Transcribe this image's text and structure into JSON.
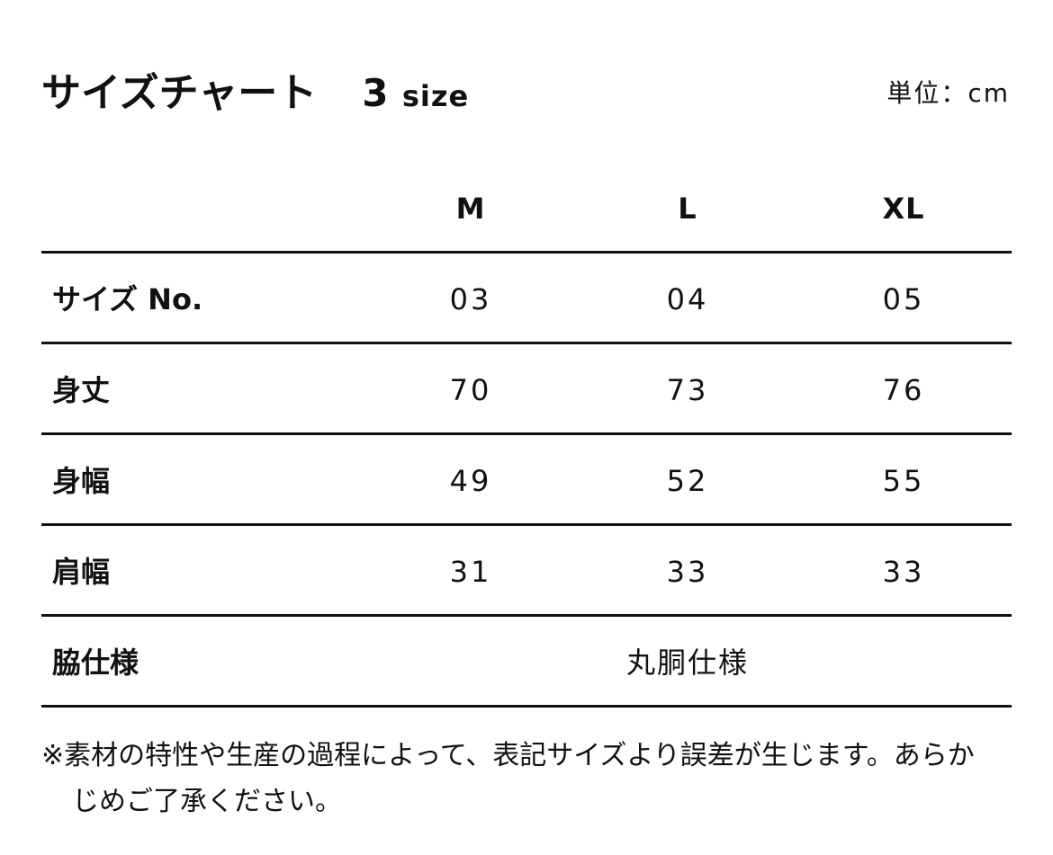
{
  "title": "サイズチャート",
  "size_count": "3",
  "size_word": "size",
  "unit": "単位：cm",
  "columns": [
    "M",
    "L",
    "XL"
  ],
  "rows": [
    {
      "label": "サイズ No.",
      "values": [
        "03",
        "04",
        "05"
      ]
    },
    {
      "label": "身丈",
      "values": [
        "70",
        "73",
        "76"
      ]
    },
    {
      "label": "身幅",
      "values": [
        "49",
        "52",
        "55"
      ]
    },
    {
      "label": "肩幅",
      "values": [
        "31",
        "33",
        "33"
      ]
    }
  ],
  "side_row": {
    "label": "脇仕様",
    "value": "丸胴仕様"
  },
  "note_line1": "※素材の特性や生産の過程によって、表記サイズより誤差が生じます。あらか",
  "note_line2": "じめご了承ください。"
}
